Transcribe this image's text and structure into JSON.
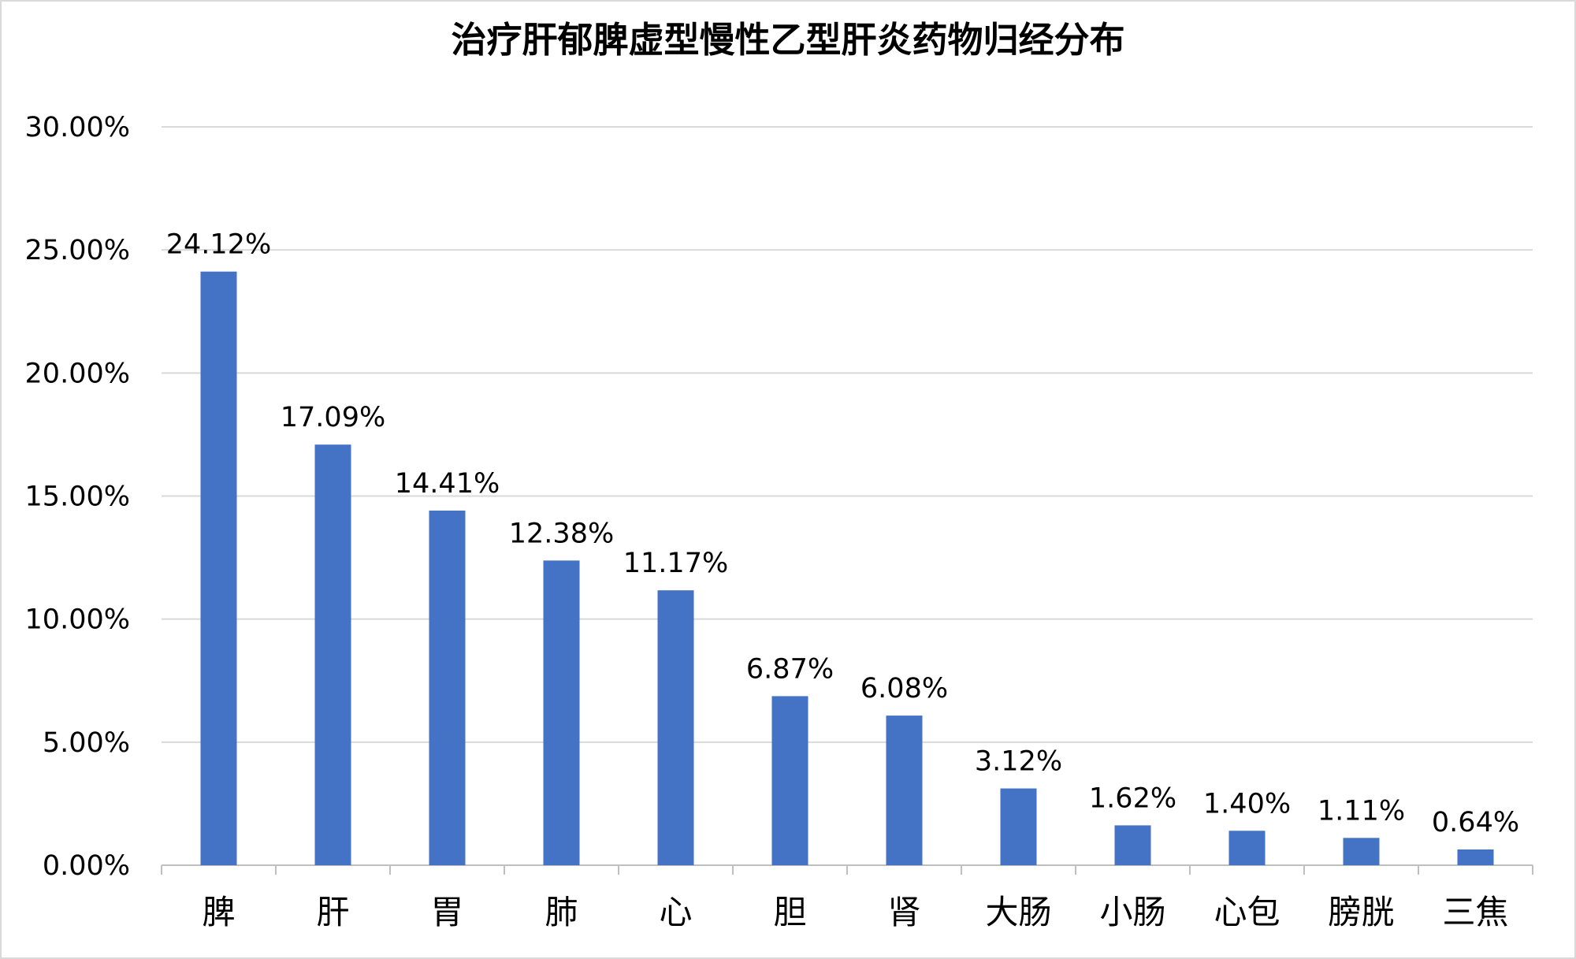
{
  "chart_data": {
    "type": "bar",
    "title": "治疗肝郁脾虚型慢性乙型肝炎药物归经分布",
    "xlabel": "",
    "ylabel": "",
    "categories": [
      "脾",
      "肝",
      "胃",
      "肺",
      "心",
      "胆",
      "肾",
      "大肠",
      "小肠",
      "心包",
      "膀胱",
      "三焦"
    ],
    "values": [
      24.12,
      17.09,
      14.41,
      12.38,
      11.17,
      6.87,
      6.08,
      3.12,
      1.62,
      1.4,
      1.11,
      0.64
    ],
    "value_labels": [
      "24.12%",
      "17.09%",
      "14.41%",
      "12.38%",
      "11.17%",
      "6.87%",
      "6.08%",
      "3.12%",
      "1.62%",
      "1.40%",
      "1.11%",
      "0.64%"
    ],
    "y_ticks": [
      0,
      5,
      10,
      15,
      20,
      25,
      30
    ],
    "y_tick_labels": [
      "0.00%",
      "5.00%",
      "10.00%",
      "15.00%",
      "20.00%",
      "25.00%",
      "30.00%"
    ],
    "ylim": [
      0,
      30
    ],
    "grid": true,
    "legend": "none",
    "colors": {
      "bar": "#4472C4",
      "grid": "#d9d9d9",
      "axis": "#bfbfbf"
    }
  }
}
